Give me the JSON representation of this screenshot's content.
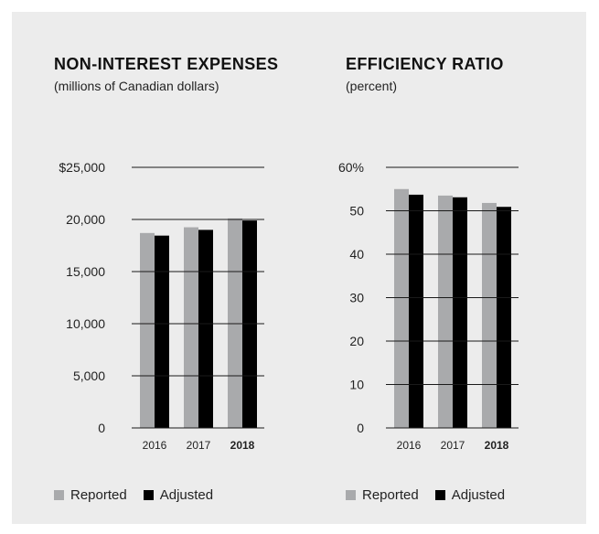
{
  "chart_data": [
    {
      "type": "bar",
      "title": "NON-INTEREST EXPENSES",
      "subtitle": "(millions of Canadian dollars)",
      "categories": [
        "2016",
        "2017",
        "2018"
      ],
      "highlight_category": "2018",
      "series": [
        {
          "name": "Reported",
          "values": [
            18700,
            19250,
            20100
          ],
          "color": "#a9aaac"
        },
        {
          "name": "Adjusted",
          "values": [
            18450,
            19000,
            19900
          ],
          "color": "#000000"
        }
      ],
      "ylim": [
        0,
        25000
      ],
      "yticks": [
        0,
        5000,
        10000,
        15000,
        20000,
        25000
      ],
      "ytick_labels": [
        "0",
        "5,000",
        "10,000",
        "15,000",
        "20,000",
        "$25,000"
      ],
      "grid": true
    },
    {
      "type": "bar",
      "title": "EFFICIENCY RATIO",
      "subtitle": "(percent)",
      "categories": [
        "2016",
        "2017",
        "2018"
      ],
      "highlight_category": "2018",
      "series": [
        {
          "name": "Reported",
          "values": [
            55.0,
            53.5,
            51.8
          ],
          "color": "#a9aaac"
        },
        {
          "name": "Adjusted",
          "values": [
            53.7,
            53.1,
            50.9
          ],
          "color": "#000000"
        }
      ],
      "ylim": [
        0,
        60
      ],
      "yticks": [
        0,
        10,
        20,
        30,
        40,
        50,
        60
      ],
      "ytick_labels": [
        "0",
        "10",
        "20",
        "30",
        "40",
        "50",
        "60%"
      ],
      "grid": true
    }
  ],
  "legend": {
    "reported": "Reported",
    "adjusted": "Adjusted"
  },
  "colors": {
    "background": "#ececec",
    "reported": "#a9aaac",
    "adjusted": "#000000",
    "axis": "#1a1a1a"
  }
}
